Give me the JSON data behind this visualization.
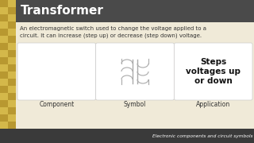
{
  "title": "Transformer",
  "title_color": "#ffffff",
  "title_bg_color": "#4a4a4a",
  "body_bg_color": "#f0ead8",
  "left_bar_color_light": "#d4b84a",
  "left_bar_color_dark": "#b89830",
  "description": "An electromagnetic switch used to change the voltage applied to a\ncircuit. It can increase (step up) or decrease (step down) voltage.",
  "description_color": "#333333",
  "box_bg": "#ffffff",
  "box_edge": "#cccccc",
  "box_labels": [
    "Component",
    "Symbol",
    "Application"
  ],
  "app_text": "Steps\nvoltages up\nor down",
  "app_text_color": "#111111",
  "footer_text": "Electronic components and circuit symbols",
  "footer_bg": "#3a3a3a",
  "footer_text_color": "#ffffff",
  "coil_color": "#aaaaaa",
  "title_fontsize": 11,
  "desc_fontsize": 5.0,
  "label_fontsize": 5.5,
  "app_fontsize": 7.5,
  "footer_fontsize": 4.2
}
